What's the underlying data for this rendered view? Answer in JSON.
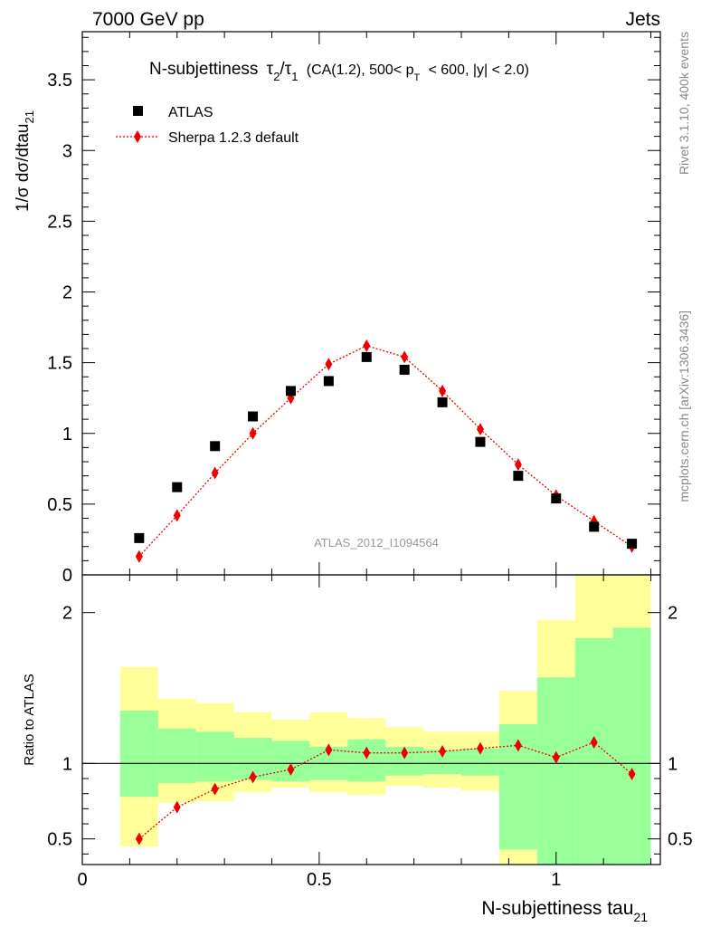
{
  "header": {
    "left": "7000 GeV pp",
    "right": "Jets"
  },
  "title": {
    "main": "N-subjettiness",
    "tau2": "τ",
    "tau2_sub": "2",
    "slash": "/",
    "tau1": "τ",
    "tau1_sub": "1",
    "part1": "(CA(1.2), 500< p",
    "pt_sub": "T",
    "part2": "< 600, |y| < 2.0)"
  },
  "ylabel_top": {
    "text": "1/σ dσ/dtau",
    "sub": "21"
  },
  "ylabel_bottom": "Ratio to ATLAS",
  "xlabel": {
    "text": "N-subjettiness tau",
    "sub": "21"
  },
  "side_labels": {
    "rivet": "Rivet 3.1.10,  400k events",
    "mcplots": "mcplots.cern.ch [arXiv:1306.3436]"
  },
  "watermark": "ATLAS_2012_I1094564",
  "legend": {
    "atlas": "ATLAS",
    "sherpa": "Sherpa 1.2.3 default"
  },
  "colors": {
    "mc": "#ee0000",
    "band_inner": "#99ff99",
    "band_outer": "#ffff99",
    "data": "#000000"
  },
  "chart_data": {
    "type": "scatter",
    "xlim": [
      0,
      1.22
    ],
    "ylim_top": [
      0,
      3.84
    ],
    "ylim_bottom": [
      0.33,
      2.25
    ],
    "x_ticks": [
      {
        "v": 0,
        "label": "0"
      },
      {
        "v": 0.5,
        "label": "0.5"
      },
      {
        "v": 1,
        "label": "1"
      }
    ],
    "y_ticks_top": [
      {
        "v": 0,
        "label": "0"
      },
      {
        "v": 0.5,
        "label": "0.5"
      },
      {
        "v": 1,
        "label": "1"
      },
      {
        "v": 1.5,
        "label": "1.5"
      },
      {
        "v": 2,
        "label": "2"
      },
      {
        "v": 2.5,
        "label": "2.5"
      },
      {
        "v": 3,
        "label": "3"
      },
      {
        "v": 3.5,
        "label": "3.5"
      }
    ],
    "y_ticks_bottom": [
      {
        "v": 0.5,
        "label": "0.5"
      },
      {
        "v": 1,
        "label": "1"
      },
      {
        "v": 2,
        "label": "2"
      }
    ],
    "x": [
      0.12,
      0.2,
      0.28,
      0.36,
      0.44,
      0.52,
      0.6,
      0.68,
      0.76,
      0.84,
      0.92,
      1.0,
      1.08,
      1.16
    ],
    "bin_edges": [
      0.08,
      0.16,
      0.24,
      0.32,
      0.4,
      0.48,
      0.56,
      0.64,
      0.72,
      0.8,
      0.88,
      0.96,
      1.04,
      1.12,
      1.2
    ],
    "series": [
      {
        "name": "ATLAS",
        "values": [
          0.26,
          0.62,
          0.91,
          1.12,
          1.3,
          1.37,
          1.54,
          1.45,
          1.22,
          0.94,
          0.7,
          0.54,
          0.34,
          0.22
        ]
      },
      {
        "name": "Sherpa 1.2.3 default",
        "values": [
          0.13,
          0.42,
          0.72,
          1.0,
          1.25,
          1.49,
          1.62,
          1.54,
          1.3,
          1.03,
          0.78,
          0.56,
          0.38,
          0.2
        ]
      }
    ],
    "ratio": {
      "values": [
        0.5,
        0.71,
        0.83,
        0.91,
        0.96,
        1.09,
        1.07,
        1.07,
        1.08,
        1.1,
        1.12,
        1.04,
        1.14,
        0.93
      ],
      "band_inner": [
        [
          0.78,
          1.35
        ],
        [
          0.87,
          1.23
        ],
        [
          0.88,
          1.21
        ],
        [
          0.89,
          1.17
        ],
        [
          0.88,
          1.15
        ],
        [
          0.89,
          1.11
        ],
        [
          0.88,
          1.16
        ],
        [
          0.92,
          1.11
        ],
        [
          0.93,
          1.09
        ],
        [
          0.92,
          1.1
        ],
        [
          0.43,
          1.26
        ],
        [
          0.33,
          1.57
        ],
        [
          0.33,
          1.83
        ],
        [
          0.33,
          1.9
        ]
      ],
      "band_outer": [
        [
          0.45,
          1.64
        ],
        [
          0.74,
          1.43
        ],
        [
          0.75,
          1.4
        ],
        [
          0.81,
          1.34
        ],
        [
          0.84,
          1.29
        ],
        [
          0.81,
          1.34
        ],
        [
          0.79,
          1.3
        ],
        [
          0.85,
          1.24
        ],
        [
          0.84,
          1.21
        ],
        [
          0.82,
          1.21
        ],
        [
          0.33,
          1.48
        ],
        [
          0.33,
          1.95
        ],
        [
          0.33,
          2.25
        ],
        [
          0.33,
          2.25
        ]
      ]
    }
  }
}
